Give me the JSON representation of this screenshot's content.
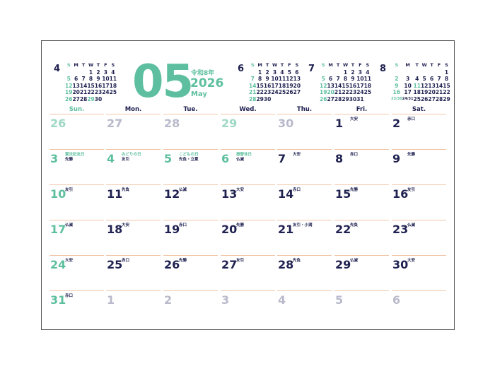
{
  "header": {
    "month_number": "05",
    "era": "令和8年",
    "year": "2026",
    "month_name": "May"
  },
  "mini_calendars": [
    {
      "month": "4",
      "weekdays": [
        "S",
        "M",
        "T",
        "W",
        "T",
        "F",
        "S"
      ],
      "weeks": [
        [
          "",
          "",
          "",
          "1",
          "2",
          "3",
          "4"
        ],
        [
          "5",
          "6",
          "7",
          "8",
          "9",
          "10",
          "11"
        ],
        [
          "12",
          "13",
          "14",
          "15",
          "16",
          "17",
          "18"
        ],
        [
          "19",
          "20",
          "21",
          "22",
          "23",
          "24",
          "25"
        ],
        [
          "26",
          "27",
          "28",
          "29",
          "30",
          "",
          ""
        ]
      ],
      "teal_days": [
        "5",
        "12",
        "19",
        "26",
        "29"
      ]
    },
    {
      "month": "6",
      "weekdays": [
        "S",
        "M",
        "T",
        "W",
        "T",
        "F",
        "S"
      ],
      "weeks": [
        [
          "",
          "1",
          "2",
          "3",
          "4",
          "5",
          "6"
        ],
        [
          "7",
          "8",
          "9",
          "10",
          "11",
          "12",
          "13"
        ],
        [
          "14",
          "15",
          "16",
          "17",
          "18",
          "19",
          "20"
        ],
        [
          "21",
          "22",
          "23",
          "24",
          "25",
          "26",
          "27"
        ],
        [
          "28",
          "29",
          "30",
          "",
          "",
          "",
          ""
        ]
      ],
      "teal_days": [
        "7",
        "14",
        "21",
        "28"
      ]
    },
    {
      "month": "7",
      "weekdays": [
        "S",
        "M",
        "T",
        "W",
        "T",
        "F",
        "S"
      ],
      "weeks": [
        [
          "",
          "",
          "",
          "1",
          "2",
          "3",
          "4"
        ],
        [
          "5",
          "6",
          "7",
          "8",
          "9",
          "10",
          "11"
        ],
        [
          "12",
          "13",
          "14",
          "15",
          "16",
          "17",
          "18"
        ],
        [
          "19",
          "20",
          "21",
          "22",
          "23",
          "24",
          "25"
        ],
        [
          "26",
          "27",
          "28",
          "29",
          "30",
          "31",
          ""
        ]
      ],
      "teal_days": [
        "5",
        "12",
        "19",
        "20",
        "26"
      ]
    },
    {
      "month": "8",
      "weekdays": [
        "S",
        "M",
        "T",
        "W",
        "T",
        "F",
        "S"
      ],
      "weeks": [
        [
          "",
          "",
          "",
          "",
          "",
          "",
          "1"
        ],
        [
          "2",
          "3",
          "4",
          "5",
          "6",
          "7",
          "8"
        ],
        [
          "9",
          "10",
          "11",
          "12",
          "13",
          "14",
          "15"
        ],
        [
          "16",
          "17",
          "18",
          "19",
          "20",
          "21",
          "22"
        ],
        [
          "23/30",
          "24/31",
          "25",
          "26",
          "27",
          "28",
          "29"
        ]
      ],
      "teal_days": [
        "2",
        "9",
        "11",
        "16",
        "23/30"
      ]
    }
  ],
  "weekdays": [
    "Sun.",
    "Mon.",
    "Tue.",
    "Wed.",
    "Thu.",
    "Fri.",
    "Sat."
  ],
  "days": [
    {
      "n": "26",
      "k": "tl"
    },
    {
      "n": "27",
      "k": "g"
    },
    {
      "n": "28",
      "k": "g"
    },
    {
      "n": "29",
      "k": "tl"
    },
    {
      "n": "30",
      "k": "g"
    },
    {
      "n": "1",
      "r": "大安"
    },
    {
      "n": "2",
      "r": "赤口"
    },
    {
      "n": "3",
      "k": "t",
      "h": "憲法記念日",
      "r": "先勝"
    },
    {
      "n": "4",
      "k": "t",
      "h": "みどりの日",
      "r": "友引"
    },
    {
      "n": "5",
      "k": "t",
      "h": "こどもの日",
      "r": "先負・立夏"
    },
    {
      "n": "6",
      "k": "t",
      "h": "振替休日",
      "r": "仏滅"
    },
    {
      "n": "7",
      "r": "大安"
    },
    {
      "n": "8",
      "r": "赤口"
    },
    {
      "n": "9",
      "r": "先勝"
    },
    {
      "n": "10",
      "k": "t",
      "r": "友引"
    },
    {
      "n": "11",
      "r": "先負"
    },
    {
      "n": "12",
      "r": "仏滅"
    },
    {
      "n": "13",
      "r": "大安"
    },
    {
      "n": "14",
      "r": "赤口"
    },
    {
      "n": "15",
      "r": "先勝"
    },
    {
      "n": "16",
      "r": "友引"
    },
    {
      "n": "17",
      "k": "t",
      "r": "仏滅"
    },
    {
      "n": "18",
      "r": "大安"
    },
    {
      "n": "19",
      "r": "赤口"
    },
    {
      "n": "20",
      "r": "先勝"
    },
    {
      "n": "21",
      "r": "友引・小満"
    },
    {
      "n": "22",
      "r": "先負"
    },
    {
      "n": "23",
      "r": "仏滅"
    },
    {
      "n": "24",
      "k": "t",
      "r": "大安"
    },
    {
      "n": "25",
      "r": "赤口"
    },
    {
      "n": "26",
      "r": "先勝"
    },
    {
      "n": "27",
      "r": "友引"
    },
    {
      "n": "28",
      "r": "先負"
    },
    {
      "n": "29",
      "r": "仏滅"
    },
    {
      "n": "30",
      "r": "大安"
    },
    {
      "n": "31",
      "k": "t",
      "r": "赤口"
    },
    {
      "n": "1",
      "k": "g"
    },
    {
      "n": "2",
      "k": "g"
    },
    {
      "n": "3",
      "k": "g"
    },
    {
      "n": "4",
      "k": "g"
    },
    {
      "n": "5",
      "k": "g"
    },
    {
      "n": "6",
      "k": "g"
    }
  ],
  "colors": {
    "accent": "#5dbf9f",
    "text": "#1f2150",
    "muted": "#b8bacb",
    "rule": "#f2c6a8"
  }
}
